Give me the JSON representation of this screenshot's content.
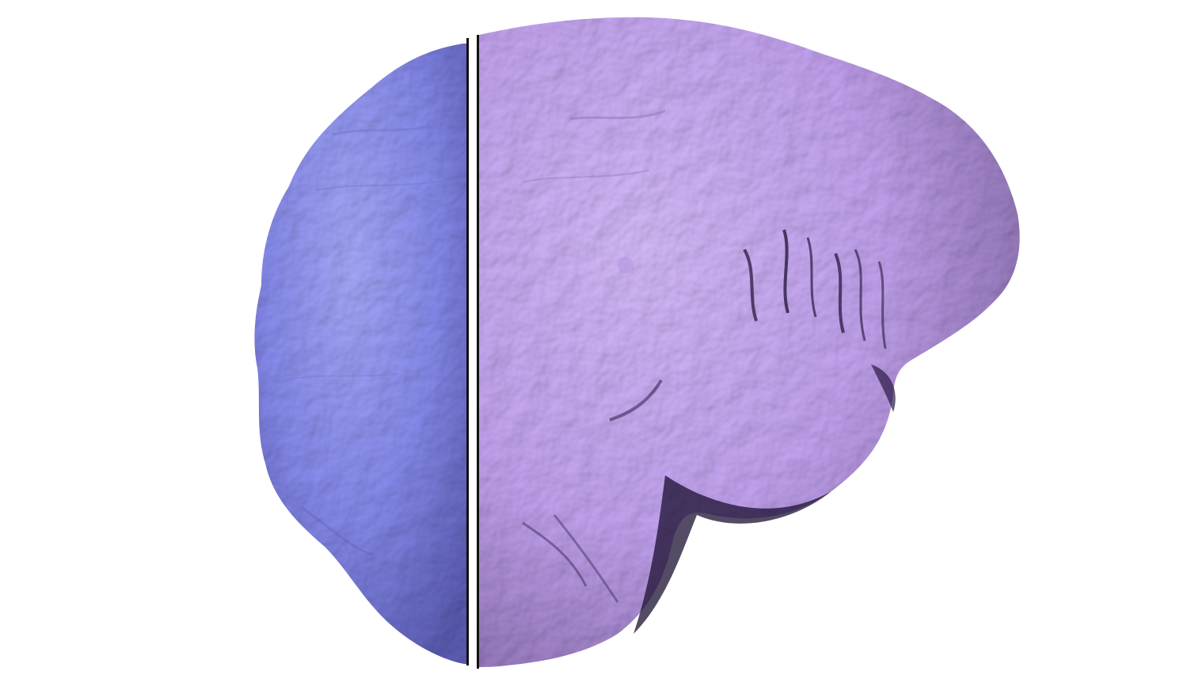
{
  "scene": {
    "background_color": "#ffffff",
    "objects": [
      {
        "name": "frontal-view-half",
        "base_color": "#8a8ef2",
        "highlight_color": "#a9adff",
        "shade_color": "#5e5fb8"
      },
      {
        "name": "lateral-view-half",
        "base_color": "#c7a6f5",
        "highlight_color": "#d9bfff",
        "shade_color": "#6a4f8c"
      }
    ],
    "divider_color": "#111111"
  }
}
